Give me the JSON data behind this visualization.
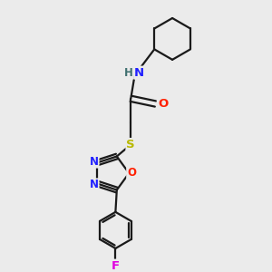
{
  "background_color": "#ebebeb",
  "bond_color": "#1a1a1a",
  "N_color": "#2020ff",
  "O_color": "#ff2000",
  "S_color": "#b8b800",
  "F_color": "#e000e0",
  "H_color": "#407070",
  "figsize": [
    3.0,
    3.0
  ],
  "dpi": 100,
  "xlim": [
    0,
    10
  ],
  "ylim": [
    0,
    10
  ]
}
